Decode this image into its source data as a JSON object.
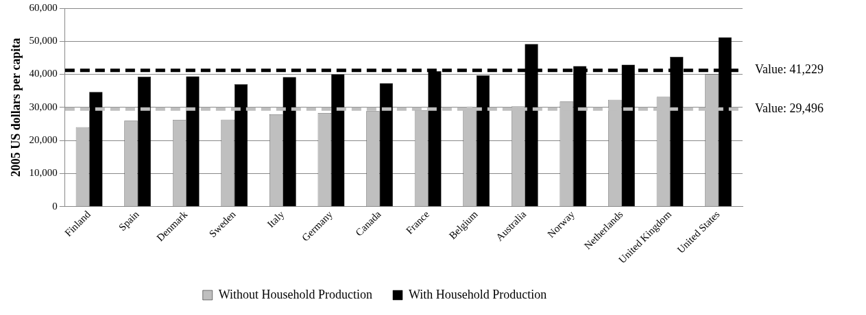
{
  "chart_data": {
    "type": "bar",
    "ylabel": "2005 US dollars per capita",
    "categories": [
      "Finland",
      "Spain",
      "Denmark",
      "Sweden",
      "Italy",
      "Germany",
      "Canada",
      "France",
      "Belgium",
      "Australia",
      "Norway",
      "Netherlands",
      "United Kingdom",
      "United States"
    ],
    "series": [
      {
        "name": "Without Household Production",
        "color": "#bfbfbf",
        "values": [
          24000,
          26000,
          26200,
          26300,
          27900,
          28300,
          28900,
          29100,
          29700,
          30300,
          31800,
          32300,
          33200,
          40000
        ]
      },
      {
        "name": "With Household Production",
        "color": "#000000",
        "values": [
          34700,
          39300,
          39400,
          37000,
          39200,
          40000,
          37300,
          41000,
          39700,
          49200,
          42500,
          42900,
          45300,
          51200
        ]
      }
    ],
    "ylim": [
      0,
      60000
    ],
    "yticks": [
      {
        "value": 0,
        "label": "0"
      },
      {
        "value": 10000,
        "label": "10,000"
      },
      {
        "value": 20000,
        "label": "20,000"
      },
      {
        "value": 30000,
        "label": "30,000"
      },
      {
        "value": 40000,
        "label": "40,000"
      },
      {
        "value": 50000,
        "label": "50,000"
      },
      {
        "value": 60000,
        "label": "60,000"
      }
    ],
    "ref_lines": [
      {
        "axis": "y",
        "value": 41229,
        "label": "Value: 41,229",
        "color": "#000000",
        "line_style": "dashed"
      },
      {
        "axis": "y",
        "value": 29496,
        "label": "Value: 29,496",
        "color": "#bfbfbf",
        "line_style": "dashed"
      }
    ],
    "grid": "y",
    "legend": "bottom"
  }
}
